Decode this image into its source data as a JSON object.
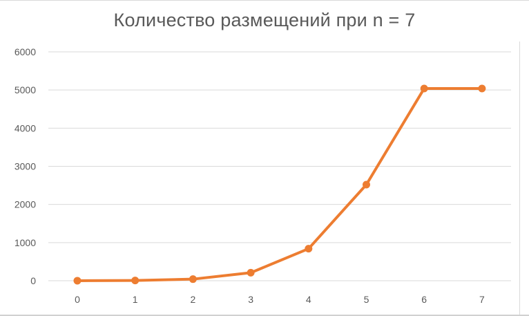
{
  "chart_data": {
    "type": "line",
    "title": "Количество размещений при n = 7",
    "xlabel": "",
    "ylabel": "",
    "x": [
      0,
      1,
      2,
      3,
      4,
      5,
      6,
      7
    ],
    "x_tick_labels": [
      "0",
      "1",
      "2",
      "3",
      "4",
      "5",
      "6",
      "7"
    ],
    "y_tick_labels": [
      "0",
      "1000",
      "2000",
      "3000",
      "4000",
      "5000",
      "6000"
    ],
    "series": [
      {
        "values": [
          1,
          7,
          42,
          210,
          840,
          2520,
          5040,
          5040
        ]
      }
    ],
    "ylim": [
      0,
      6000
    ],
    "grid": true,
    "legend": "none",
    "colors": {
      "series": "#ED7D31",
      "grid": "#d9d9d9",
      "text": "#595959"
    }
  }
}
